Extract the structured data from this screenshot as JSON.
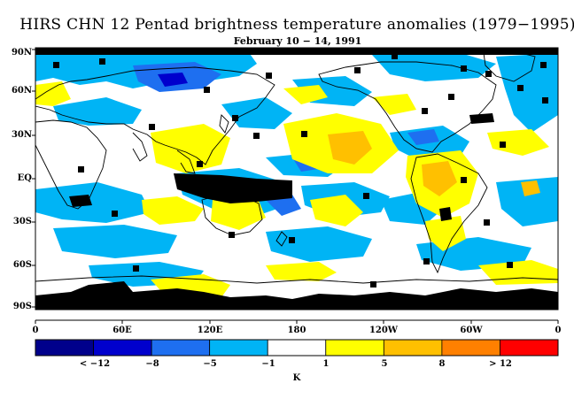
{
  "title": "HIRS CHN 12 Pentad brightness temperature anomalies (1979−1995)",
  "subtitle": "February 10 − 14, 1991",
  "lat_labels": [
    "90N",
    "60N",
    "30N",
    "EQ",
    "30S",
    "60S",
    "90S"
  ],
  "lon_labels": [
    "0",
    "60E",
    "120E",
    "180",
    "120W",
    "60W",
    "0"
  ],
  "colorbar": {
    "colors": [
      "#00008b",
      "#0000cd",
      "#1e6ff0",
      "#00b4f5",
      "#ffffff",
      "#ffff00",
      "#ffc000",
      "#ff8000",
      "#ff0000"
    ],
    "labels": [
      "< −12",
      "−8",
      "−5",
      "−1",
      "1",
      "5",
      "8",
      "> 12"
    ],
    "unit": "K"
  },
  "map": {
    "missing_color": "#000000",
    "coast_color": "#000000"
  }
}
